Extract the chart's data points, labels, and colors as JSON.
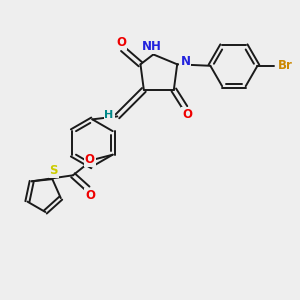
{
  "background_color": "#eeeeee",
  "bond_color": "#1a1a1a",
  "atom_colors": {
    "O": "#ee0000",
    "N": "#2222dd",
    "S": "#cccc00",
    "Br": "#cc8800",
    "H_label": "#008888",
    "C": "#1a1a1a"
  }
}
